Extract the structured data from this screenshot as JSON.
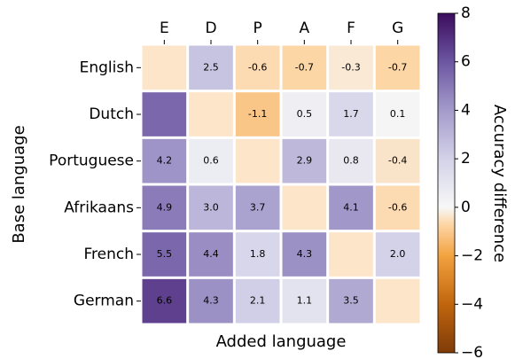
{
  "chart_data": {
    "type": "heatmap",
    "x_label": "Added language",
    "y_label": "Base language",
    "colorbar_label": "Accuracy difference",
    "columns": [
      "E",
      "D",
      "P",
      "A",
      "F",
      "G"
    ],
    "rows": [
      "English",
      "Dutch",
      "Portuguese",
      "Afrikaans",
      "French",
      "German"
    ],
    "values": [
      [
        null,
        2.5,
        -0.6,
        -0.7,
        -0.3,
        -0.7
      ],
      [
        5.5,
        null,
        -1.1,
        0.5,
        1.7,
        0.1
      ],
      [
        4.2,
        0.6,
        null,
        2.9,
        0.8,
        -0.4
      ],
      [
        4.9,
        3.0,
        3.7,
        null,
        4.1,
        -0.6
      ],
      [
        5.5,
        4.4,
        1.8,
        4.3,
        null,
        2.0
      ],
      [
        6.6,
        4.3,
        2.1,
        1.1,
        3.5,
        null
      ]
    ],
    "value_labels": [
      [
        null,
        "2.5",
        "-0.6",
        "-0.7",
        "-0.3",
        "-0.7"
      ],
      [
        null,
        null,
        "-1.1",
        "0.5",
        "1.7",
        "0.1"
      ],
      [
        "4.2",
        "0.6",
        null,
        "2.9",
        "0.8",
        "-0.4"
      ],
      [
        "4.9",
        "3.0",
        "3.7",
        null,
        "4.1",
        "-0.6"
      ],
      [
        "5.5",
        "4.4",
        "1.8",
        "4.3",
        null,
        "2.0"
      ],
      [
        "6.6",
        "4.3",
        "2.1",
        "1.1",
        "3.5",
        null
      ]
    ],
    "clim": [
      -6,
      8
    ],
    "cticks": [
      8,
      6,
      4,
      2,
      0,
      {
        "value": -2,
        "label": "−2"
      },
      {
        "value": -4,
        "label": "−4"
      },
      {
        "value": -6,
        "label": "−6"
      }
    ],
    "colorscale": [
      [
        -6,
        "#7f3b08"
      ],
      [
        -4,
        "#c0650d"
      ],
      [
        -2,
        "#f3a240"
      ],
      [
        -0.7,
        "#fdd6a6"
      ],
      [
        0,
        "#f7f7f7"
      ],
      [
        2,
        "#d3d2e8"
      ],
      [
        4,
        "#a49bcb"
      ],
      [
        6,
        "#6c56a2"
      ],
      [
        8,
        "#3c0c5e"
      ]
    ],
    "diagonal_color": "#fde5c9",
    "negative_label_color": "#ff0000",
    "label_color": "#222222"
  }
}
